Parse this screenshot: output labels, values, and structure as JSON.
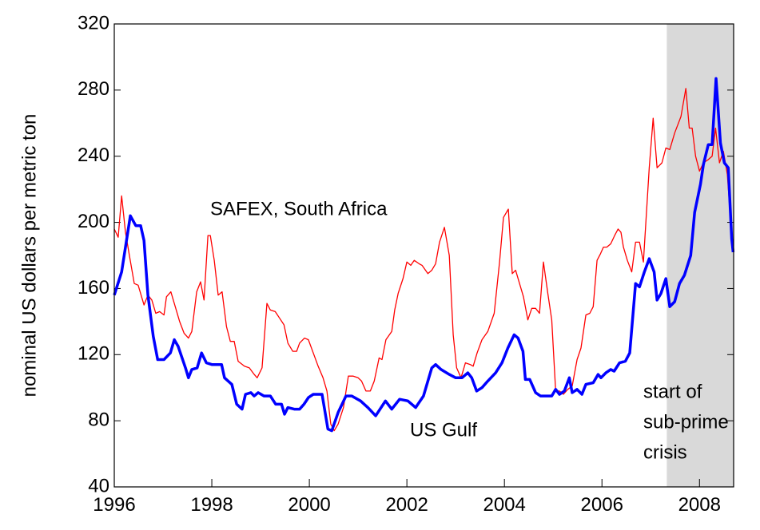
{
  "chart_data": {
    "type": "line",
    "y_label": "nominal US dollars per metric ton",
    "annotations": [
      "SAFEX, South Africa",
      "US Gulf",
      "start of",
      "sub-prime",
      "crisis"
    ],
    "xlim": [
      1996,
      2008.7
    ],
    "xticks": [
      1996,
      1998,
      2000,
      2002,
      2004,
      2006,
      2008
    ],
    "ylim": [
      40,
      320
    ],
    "yticks": [
      40,
      80,
      120,
      160,
      200,
      240,
      280,
      320
    ],
    "grid": false,
    "shade": [
      2007.33,
      2008.7
    ],
    "shade_color": "#d9d9d9",
    "series": [
      {
        "name": "SAFEX, South Africa",
        "color": "#ff0000",
        "width": 1.3,
        "x": [
          1996.0,
          1996.08,
          1996.15,
          1996.23,
          1996.31,
          1996.41,
          1996.49,
          1996.61,
          1996.69,
          1996.77,
          1996.85,
          1996.93,
          1997.02,
          1997.07,
          1997.16,
          1997.25,
          1997.34,
          1997.43,
          1997.52,
          1997.59,
          1997.69,
          1997.77,
          1997.84,
          1997.92,
          1997.97,
          1998.05,
          1998.13,
          1998.21,
          1998.3,
          1998.38,
          1998.46,
          1998.54,
          1998.67,
          1998.77,
          1998.87,
          1998.93,
          1999.03,
          1999.13,
          1999.2,
          1999.3,
          1999.39,
          1999.48,
          1999.56,
          1999.66,
          1999.74,
          1999.8,
          1999.9,
          1999.98,
          2000.08,
          2000.18,
          2000.28,
          2000.36,
          2000.44,
          2000.51,
          2000.59,
          2000.7,
          2000.8,
          2000.9,
          2001.0,
          2001.07,
          2001.16,
          2001.25,
          2001.33,
          2001.43,
          2001.49,
          2001.57,
          2001.69,
          2001.75,
          2001.82,
          2001.92,
          2002.0,
          2002.08,
          2002.15,
          2002.25,
          2002.31,
          2002.43,
          2002.51,
          2002.59,
          2002.67,
          2002.77,
          2002.87,
          2002.95,
          2003.02,
          2003.11,
          2003.2,
          2003.3,
          2003.36,
          2003.44,
          2003.54,
          2003.66,
          2003.79,
          2003.9,
          2003.98,
          2004.08,
          2004.16,
          2004.23,
          2004.31,
          2004.39,
          2004.48,
          2004.56,
          2004.64,
          2004.72,
          2004.8,
          2004.89,
          2004.97,
          2005.05,
          2005.13,
          2005.21,
          2005.3,
          2005.39,
          2005.49,
          2005.57,
          2005.67,
          2005.75,
          2005.82,
          2005.9,
          2005.97,
          2006.03,
          2006.1,
          2006.18,
          2006.26,
          2006.33,
          2006.39,
          2006.44,
          2006.52,
          2006.61,
          2006.69,
          2006.77,
          2006.85,
          2006.97,
          2007.05,
          2007.13,
          2007.23,
          2007.31,
          2007.39,
          2007.49,
          2007.62,
          2007.72,
          2007.79,
          2007.85,
          2007.92,
          2008.0,
          2008.08,
          2008.18,
          2008.26,
          2008.33,
          2008.41,
          2008.49,
          2008.57,
          2008.66,
          2008.69
        ],
        "values": [
          196,
          191,
          216,
          194,
          180,
          163,
          162,
          150,
          156,
          153,
          145,
          146,
          144,
          155,
          158,
          149,
          140,
          133,
          130,
          134,
          158,
          164,
          153,
          192,
          192,
          177,
          156,
          158,
          137,
          128,
          128,
          116,
          113,
          112,
          108,
          106,
          112,
          151,
          147,
          146,
          142,
          138,
          127,
          122,
          122,
          127,
          130,
          129,
          121,
          113,
          106,
          98,
          78,
          74,
          78,
          88,
          107,
          107,
          106,
          104,
          98,
          98,
          104,
          118,
          117,
          129,
          134,
          147,
          157,
          166,
          176,
          174,
          177,
          175,
          174,
          169,
          171,
          175,
          188,
          197,
          180,
          132,
          112,
          106,
          115,
          114,
          113,
          121,
          129,
          134,
          145,
          176,
          203,
          208,
          169,
          171,
          163,
          155,
          141,
          148,
          148,
          145,
          176,
          157,
          141,
          98,
          98,
          96,
          99,
          101,
          117,
          124,
          144,
          145,
          149,
          177,
          181,
          185,
          185,
          187,
          192,
          196,
          194,
          185,
          177,
          170,
          188,
          188,
          176,
          233,
          263,
          233,
          236,
          245,
          244,
          254,
          264,
          281,
          257,
          257,
          240,
          231,
          236,
          238,
          240,
          257,
          236,
          243,
          229,
          192,
          182
        ]
      },
      {
        "name": "US Gulf",
        "color": "#0000ff",
        "width": 3.5,
        "x": [
          1996.0,
          1996.15,
          1996.33,
          1996.44,
          1996.54,
          1996.61,
          1996.69,
          1996.8,
          1996.89,
          1997.02,
          1997.15,
          1997.23,
          1997.31,
          1997.46,
          1997.52,
          1997.59,
          1997.7,
          1997.79,
          1997.89,
          1998.0,
          1998.11,
          1998.2,
          1998.26,
          1998.41,
          1998.51,
          1998.62,
          1998.69,
          1998.8,
          1998.87,
          1998.95,
          1999.07,
          1999.2,
          1999.31,
          1999.43,
          1999.49,
          1999.56,
          1999.69,
          1999.8,
          1999.89,
          1999.98,
          2000.08,
          2000.26,
          2000.38,
          2000.46,
          2000.59,
          2000.75,
          2000.87,
          2001.05,
          2001.2,
          2001.36,
          2001.56,
          2001.69,
          2001.85,
          2002.02,
          2002.18,
          2002.34,
          2002.51,
          2002.59,
          2002.7,
          2002.87,
          2003.0,
          2003.13,
          2003.25,
          2003.33,
          2003.43,
          2003.54,
          2003.66,
          2003.82,
          2003.95,
          2004.07,
          2004.2,
          2004.28,
          2004.38,
          2004.43,
          2004.52,
          2004.64,
          2004.74,
          2004.84,
          2004.97,
          2005.05,
          2005.13,
          2005.23,
          2005.33,
          2005.39,
          2005.49,
          2005.59,
          2005.67,
          2005.82,
          2005.92,
          2005.98,
          2006.08,
          2006.18,
          2006.25,
          2006.36,
          2006.48,
          2006.57,
          2006.69,
          2006.77,
          2006.87,
          2006.97,
          2007.07,
          2007.13,
          2007.21,
          2007.31,
          2007.39,
          2007.49,
          2007.59,
          2007.69,
          2007.82,
          2007.9,
          2008.02,
          2008.08,
          2008.18,
          2008.26,
          2008.34,
          2008.43,
          2008.51,
          2008.59,
          2008.66,
          2008.69
        ],
        "values": [
          156,
          170,
          204,
          198,
          198,
          189,
          156,
          131,
          117,
          117,
          121,
          129,
          125,
          112,
          106,
          111,
          112,
          121,
          115,
          114,
          114,
          114,
          106,
          102,
          90,
          87,
          96,
          97,
          95,
          97,
          95,
          95,
          90,
          90,
          84,
          88,
          87,
          87,
          90,
          94,
          96,
          96,
          75,
          74,
          85,
          95,
          95,
          92,
          88,
          83,
          92,
          87,
          93,
          92,
          88,
          95,
          112,
          114,
          111,
          108,
          106,
          106,
          109,
          106,
          98,
          100,
          104,
          109,
          115,
          124,
          132,
          130,
          122,
          105,
          105,
          97,
          95,
          95,
          95,
          99,
          96,
          98,
          106,
          97,
          99,
          96,
          102,
          103,
          108,
          106,
          109,
          111,
          110,
          115,
          116,
          121,
          163,
          161,
          170,
          178,
          170,
          153,
          157,
          166,
          149,
          152,
          163,
          168,
          180,
          206,
          223,
          235,
          247,
          247,
          287,
          248,
          236,
          233,
          190,
          182
        ]
      }
    ]
  }
}
